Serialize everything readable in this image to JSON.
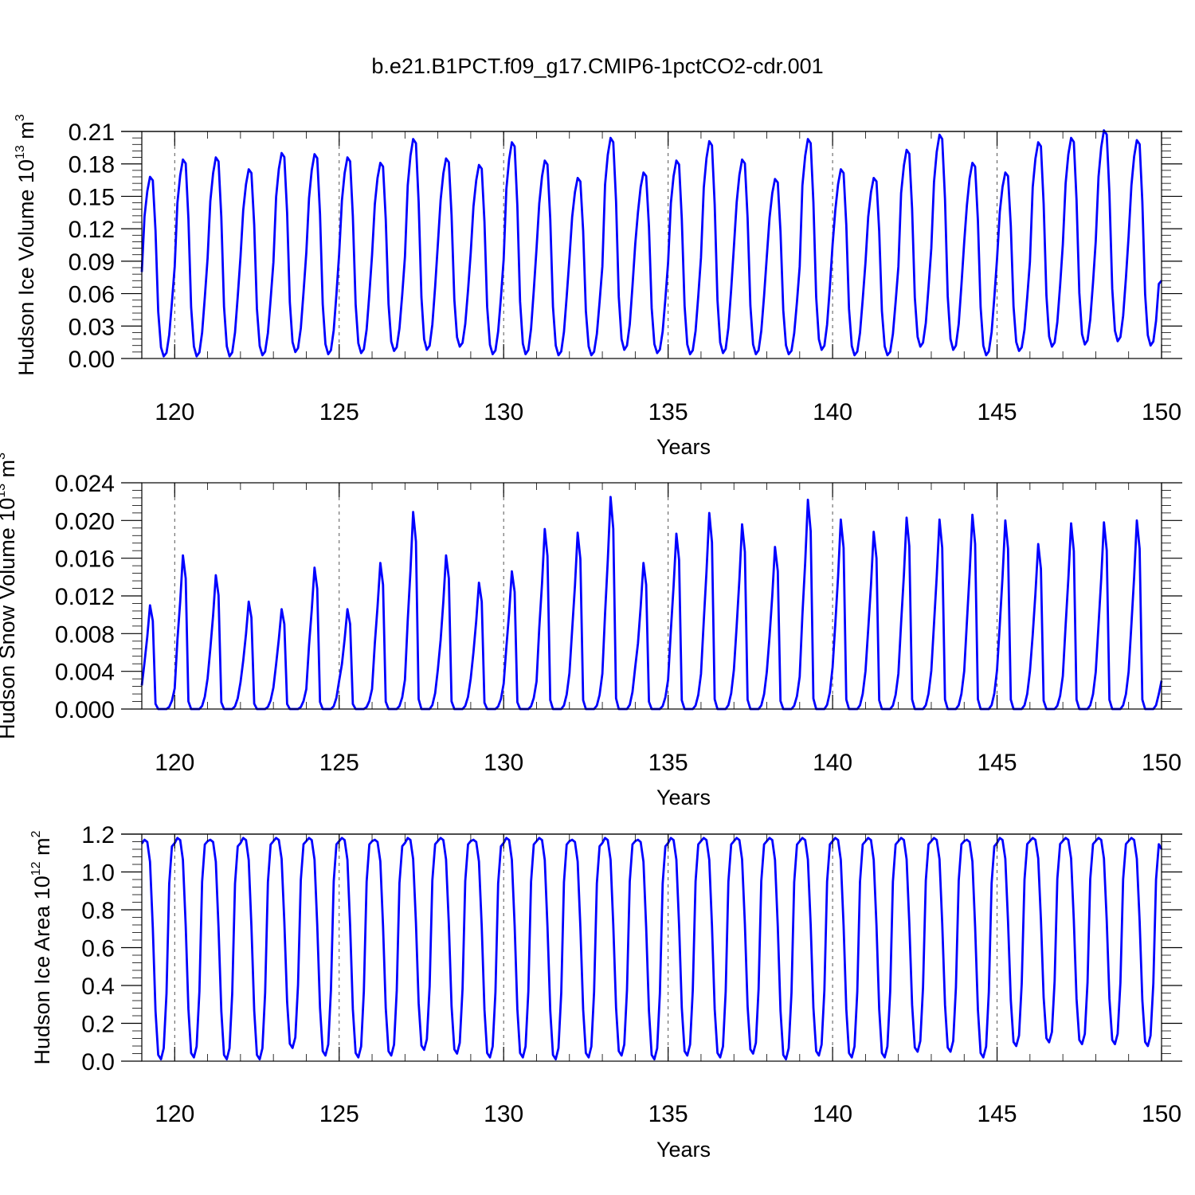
{
  "figure": {
    "title": "b.e21.B1PCT.f09_g17.CMIP6-1pctCO2-cdr.001"
  },
  "colors": {
    "series": "#0000ff",
    "axis": "#000000",
    "grid": "#555555"
  },
  "chart_data": [
    {
      "type": "line",
      "name": "ice-volume",
      "ylabel": "Hudson Ice Volume 10",
      "ylabel_exp": "13",
      "ylabel_unit": " m",
      "ylabel_unit_exp": "3",
      "xlabel": "Years",
      "xlim": [
        119,
        150
      ],
      "ylim": [
        0,
        0.21
      ],
      "xticks": [
        120,
        125,
        130,
        135,
        140,
        145,
        150
      ],
      "xtick_labels": [
        "120",
        "125",
        "130",
        "135",
        "140",
        "145",
        "150"
      ],
      "yticks": [
        0,
        0.03,
        0.06,
        0.09,
        0.12,
        0.15,
        0.18,
        0.21
      ],
      "ytick_labels": [
        "0.00",
        "0.03",
        "0.06",
        "0.09",
        "0.12",
        "0.15",
        "0.18",
        "0.21"
      ],
      "vgrid": [
        120,
        125,
        130,
        135,
        140,
        145
      ],
      "ref_line": 0.21,
      "series": {
        "start_year": 119.0,
        "step_years": 0.0833333,
        "cycle_template": [
          0.0,
          0.001,
          0.01,
          0.04,
          0.12,
          0.0,
          0.0,
          0.0,
          0.0,
          0.0,
          0.0,
          0.0
        ],
        "annual_peaks": [
          0.168,
          0.184,
          0.186,
          0.175,
          0.19,
          0.189,
          0.186,
          0.181,
          0.203,
          0.185,
          0.179,
          0.2,
          0.183,
          0.167,
          0.204,
          0.172,
          0.183,
          0.201,
          0.184,
          0.166,
          0.203,
          0.175,
          0.167,
          0.193,
          0.207,
          0.181,
          0.172,
          0.2,
          0.204,
          0.211,
          0.202
        ],
        "annual_minima": [
          0.002,
          0.002,
          0.002,
          0.003,
          0.006,
          0.004,
          0.005,
          0.007,
          0.008,
          0.011,
          0.004,
          0.004,
          0.003,
          0.003,
          0.008,
          0.005,
          0.004,
          0.005,
          0.004,
          0.004,
          0.008,
          0.003,
          0.003,
          0.011,
          0.008,
          0.003,
          0.007,
          0.011,
          0.013,
          0.016,
          0.012
        ],
        "start_value": 0.08,
        "end_value": 0.072
      }
    },
    {
      "type": "line",
      "name": "snow-volume",
      "ylabel": "Hudson Snow Volume 10",
      "ylabel_exp": "13",
      "ylabel_unit": " m",
      "ylabel_unit_exp": "3",
      "xlabel": "Years",
      "xlim": [
        119,
        150
      ],
      "ylim": [
        0,
        0.024
      ],
      "xticks": [
        120,
        125,
        130,
        135,
        140,
        145,
        150
      ],
      "xtick_labels": [
        "120",
        "125",
        "130",
        "135",
        "140",
        "145",
        "150"
      ],
      "yticks": [
        0,
        0.004,
        0.008,
        0.012,
        0.016,
        0.02,
        0.024
      ],
      "ytick_labels": [
        "0.000",
        "0.004",
        "0.008",
        "0.012",
        "0.016",
        "0.020",
        "0.024"
      ],
      "vgrid": [
        120,
        125,
        130,
        135,
        140,
        145
      ],
      "ref_line": null,
      "series": {
        "start_year": 119.0,
        "step_years": 0.0833333,
        "annual_peaks": [
          0.011,
          0.0163,
          0.0142,
          0.0114,
          0.0106,
          0.015,
          0.0106,
          0.0155,
          0.0209,
          0.0163,
          0.0134,
          0.0146,
          0.0191,
          0.0187,
          0.0225,
          0.0155,
          0.0186,
          0.0208,
          0.0196,
          0.0172,
          0.0222,
          0.0201,
          0.0188,
          0.0203,
          0.0201,
          0.0206,
          0.02,
          0.0175,
          0.0197,
          0.0198,
          0.02
        ],
        "start_value": 0.0025,
        "end_value": 0.003
      }
    },
    {
      "type": "line",
      "name": "ice-area",
      "ylabel": "Hudson Ice Area 10",
      "ylabel_exp": "12",
      "ylabel_unit": " m",
      "ylabel_unit_exp": "2",
      "xlabel": "Years",
      "xlim": [
        119,
        150
      ],
      "ylim": [
        0,
        1.2
      ],
      "xticks": [
        120,
        125,
        130,
        135,
        140,
        145,
        150
      ],
      "xtick_labels": [
        "120",
        "125",
        "130",
        "135",
        "140",
        "145",
        "150"
      ],
      "yticks": [
        0,
        0.2,
        0.4,
        0.6,
        0.8,
        1.0,
        1.2
      ],
      "ytick_labels": [
        "0.0",
        "0.2",
        "0.4",
        "0.6",
        "0.8",
        "1.0",
        "1.2"
      ],
      "vgrid": [
        120,
        125,
        130,
        135,
        140,
        145
      ],
      "ref_line": 1.2,
      "series": {
        "start_year": 119.0,
        "step_years": 0.0833333,
        "annual_peaks": [
          1.17,
          1.18,
          1.17,
          1.18,
          1.18,
          1.18,
          1.18,
          1.17,
          1.18,
          1.18,
          1.17,
          1.18,
          1.18,
          1.17,
          1.18,
          1.17,
          1.18,
          1.18,
          1.18,
          1.18,
          1.18,
          1.18,
          1.18,
          1.18,
          1.18,
          1.17,
          1.18,
          1.18,
          1.18,
          1.18,
          1.18
        ],
        "annual_minima": [
          0.01,
          0.02,
          0.01,
          0.01,
          0.07,
          0.03,
          0.02,
          0.03,
          0.06,
          0.04,
          0.02,
          0.02,
          0.01,
          0.02,
          0.03,
          0.01,
          0.03,
          0.02,
          0.04,
          0.01,
          0.03,
          0.02,
          0.02,
          0.05,
          0.05,
          0.02,
          0.08,
          0.1,
          0.09,
          0.09,
          0.08
        ],
        "start_value": 1.15,
        "end_value": 1.12
      }
    }
  ]
}
